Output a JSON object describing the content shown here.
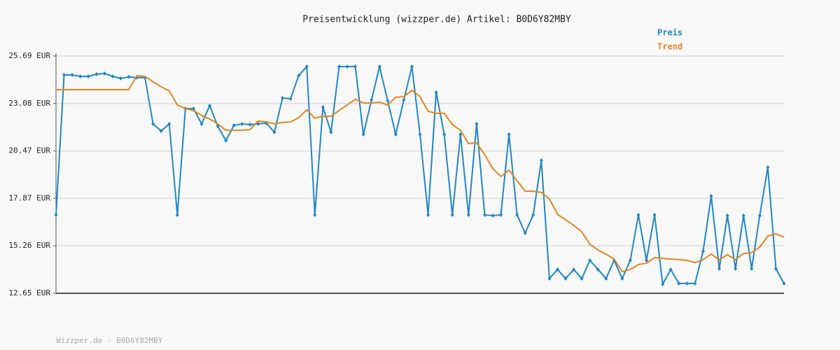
{
  "chart_data": {
    "type": "line",
    "title": "Preisentwicklung (wizzper.de) Artikel: B0D6Y82MBY",
    "ylim": [
      12.65,
      25.69
    ],
    "yticks": [
      {
        "value": 12.65,
        "label": "12.65 EUR"
      },
      {
        "value": 15.26,
        "label": "15.26 EUR"
      },
      {
        "value": 17.87,
        "label": "17.87 EUR"
      },
      {
        "value": 20.47,
        "label": "20.47 EUR"
      },
      {
        "value": 23.08,
        "label": "23.08 EUR"
      },
      {
        "value": 25.69,
        "label": "25.69 EUR"
      }
    ],
    "grid": true,
    "series": [
      {
        "name": "Preis",
        "color": "#1f87c6",
        "values": [
          16.96,
          24.65,
          24.65,
          24.57,
          24.57,
          24.69,
          24.73,
          24.57,
          24.46,
          24.54,
          24.5,
          24.5,
          21.96,
          21.57,
          21.96,
          16.96,
          22.8,
          22.8,
          21.96,
          22.96,
          21.84,
          21.04,
          21.88,
          21.96,
          21.92,
          21.96,
          22.0,
          21.5,
          23.38,
          23.34,
          24.61,
          25.11,
          16.96,
          22.88,
          21.5,
          25.11,
          25.11,
          25.11,
          21.38,
          23.27,
          25.11,
          23.23,
          21.38,
          23.27,
          25.11,
          21.38,
          16.96,
          23.69,
          21.38,
          16.96,
          21.38,
          16.96,
          21.96,
          16.96,
          16.92,
          16.96,
          21.38,
          16.96,
          15.96,
          16.96,
          19.96,
          13.46,
          13.96,
          13.46,
          13.96,
          13.46,
          14.46,
          13.96,
          13.46,
          14.46,
          13.46,
          14.46,
          16.96,
          14.46,
          16.96,
          13.15,
          13.96,
          13.19,
          13.19,
          13.19,
          14.96,
          17.99,
          14.0,
          16.92,
          14.0,
          16.92,
          14.0,
          16.92,
          19.57,
          14.0,
          13.19
        ]
      },
      {
        "name": "Trend",
        "color": "#e0871e",
        "values": [
          23.84,
          23.84,
          23.84,
          23.84,
          23.84,
          23.84,
          23.84,
          23.84,
          23.84,
          23.84,
          24.61,
          24.57,
          24.27,
          24.0,
          23.77,
          23.0,
          22.8,
          22.69,
          22.42,
          22.23,
          21.96,
          21.61,
          21.61,
          21.61,
          21.65,
          22.11,
          22.07,
          21.96,
          22.04,
          22.07,
          22.3,
          22.73,
          22.27,
          22.38,
          22.38,
          22.69,
          23.0,
          23.31,
          23.11,
          23.11,
          23.15,
          23.0,
          23.42,
          23.46,
          23.8,
          23.46,
          22.65,
          22.54,
          22.54,
          21.92,
          21.61,
          20.88,
          20.92,
          20.27,
          19.5,
          19.07,
          19.42,
          18.84,
          18.26,
          18.26,
          18.19,
          17.84,
          16.99,
          16.69,
          16.38,
          16.03,
          15.34,
          15.03,
          14.8,
          14.53,
          13.84,
          13.96,
          14.23,
          14.3,
          14.61,
          14.57,
          14.53,
          14.5,
          14.46,
          14.34,
          14.5,
          14.8,
          14.5,
          14.77,
          14.5,
          14.84,
          14.88,
          15.19,
          15.8,
          15.92,
          15.73
        ]
      }
    ]
  },
  "footer": "Wizzper.de - B0D6Y82MBY"
}
